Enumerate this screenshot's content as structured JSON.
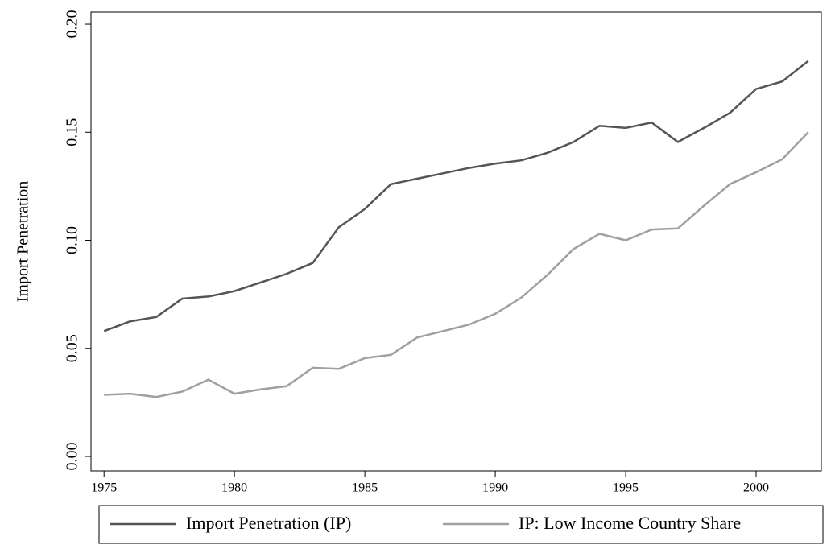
{
  "chart_data": {
    "type": "line",
    "y_label": "Import Penetration",
    "x": [
      1975,
      1976,
      1977,
      1978,
      1979,
      1980,
      1981,
      1982,
      1983,
      1984,
      1985,
      1986,
      1987,
      1988,
      1989,
      1990,
      1991,
      1992,
      1993,
      1994,
      1995,
      1996,
      1997,
      1998,
      1999,
      2000,
      2001,
      2002
    ],
    "series": [
      {
        "name": "Import Penetration (IP)",
        "color": "#555555",
        "values": [
          0.058,
          0.0625,
          0.0645,
          0.073,
          0.074,
          0.0765,
          0.0805,
          0.0845,
          0.0895,
          0.106,
          0.1145,
          0.126,
          0.1285,
          0.131,
          0.1335,
          0.1355,
          0.137,
          0.1405,
          0.1455,
          0.153,
          0.152,
          0.1545,
          0.1455,
          0.152,
          0.159,
          0.17,
          0.1735,
          0.183
        ]
      },
      {
        "name": "IP: Low Income Country Share",
        "color": "#a0a0a0",
        "values": [
          0.0285,
          0.029,
          0.0275,
          0.03,
          0.0355,
          0.029,
          0.031,
          0.0325,
          0.041,
          0.0405,
          0.0455,
          0.047,
          0.055,
          0.058,
          0.061,
          0.066,
          0.0735,
          0.084,
          0.096,
          0.103,
          0.1,
          0.105,
          0.1055,
          0.116,
          0.126,
          0.1315,
          0.1375,
          0.15
        ]
      }
    ],
    "xlim": [
      1974.5,
      2002.5
    ],
    "xticks": [
      1975,
      1980,
      1985,
      1990,
      1995,
      2000
    ],
    "ylim": [
      -0.0067,
      0.2056
    ],
    "yticks": [
      {
        "value": 0,
        "label": "0.00"
      },
      {
        "value": 0.05,
        "label": "0.05"
      },
      {
        "value": 0.1,
        "label": "0.10"
      },
      {
        "value": 0.15,
        "label": "0.15"
      },
      {
        "value": 0.2,
        "label": "0.20"
      }
    ],
    "legend": "bottom"
  }
}
